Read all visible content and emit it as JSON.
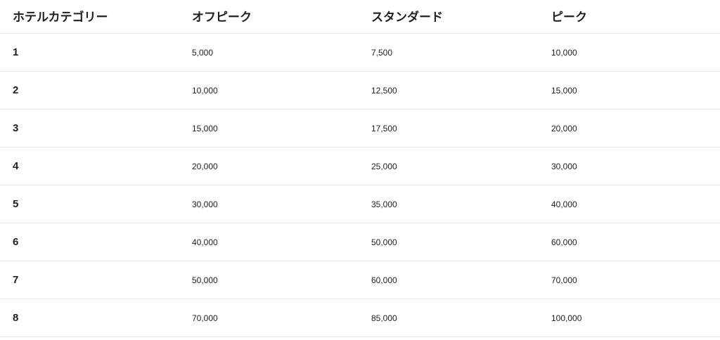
{
  "table": {
    "headers": [
      "ホテルカテゴリー",
      "オフピーク",
      "スタンダード",
      "ピーク"
    ],
    "rows": [
      [
        "1",
        "5,000",
        "7,500",
        "10,000"
      ],
      [
        "2",
        "10,000",
        "12,500",
        "15,000"
      ],
      [
        "3",
        "15,000",
        "17,500",
        "20,000"
      ],
      [
        "4",
        "20,000",
        "25,000",
        "30,000"
      ],
      [
        "5",
        "30,000",
        "35,000",
        "40,000"
      ],
      [
        "6",
        "40,000",
        "50,000",
        "60,000"
      ],
      [
        "7",
        "50,000",
        "60,000",
        "70,000"
      ],
      [
        "8",
        "70,000",
        "85,000",
        "100,000"
      ]
    ]
  }
}
